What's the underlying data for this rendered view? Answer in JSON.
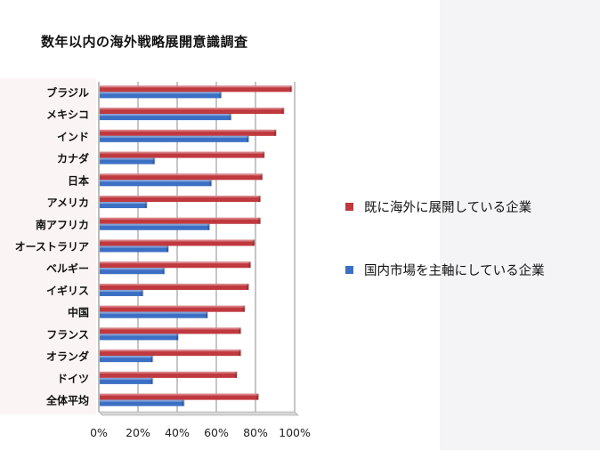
{
  "chart_data": {
    "type": "bar",
    "orientation": "horizontal",
    "title": "数年以内の海外戦略展開意識調査",
    "categories": [
      "ブラジル",
      "メキシコ",
      "インド",
      "カナダ",
      "日本",
      "アメリカ",
      "南アフリカ",
      "オーストラリア",
      "ベルギー",
      "イギリス",
      "中国",
      "フランス",
      "オランダ",
      "ドイツ",
      "全体平均"
    ],
    "series": [
      {
        "name": "既に海外に展開している企業",
        "color": "#c0393f",
        "values": [
          98,
          94,
          90,
          84,
          83,
          82,
          82,
          79,
          77,
          76,
          74,
          72,
          72,
          70,
          81
        ]
      },
      {
        "name": "国内市場を主軸にしている企業",
        "color": "#3c70c4",
        "values": [
          62,
          67,
          76,
          28,
          57,
          24,
          56,
          35,
          33,
          22,
          55,
          40,
          27,
          27,
          43
        ]
      }
    ],
    "xlim": [
      0,
      100
    ],
    "xticks": [
      "0%",
      "20%",
      "40%",
      "60%",
      "80%",
      "100%"
    ],
    "grid": true,
    "legend_position": "right"
  }
}
